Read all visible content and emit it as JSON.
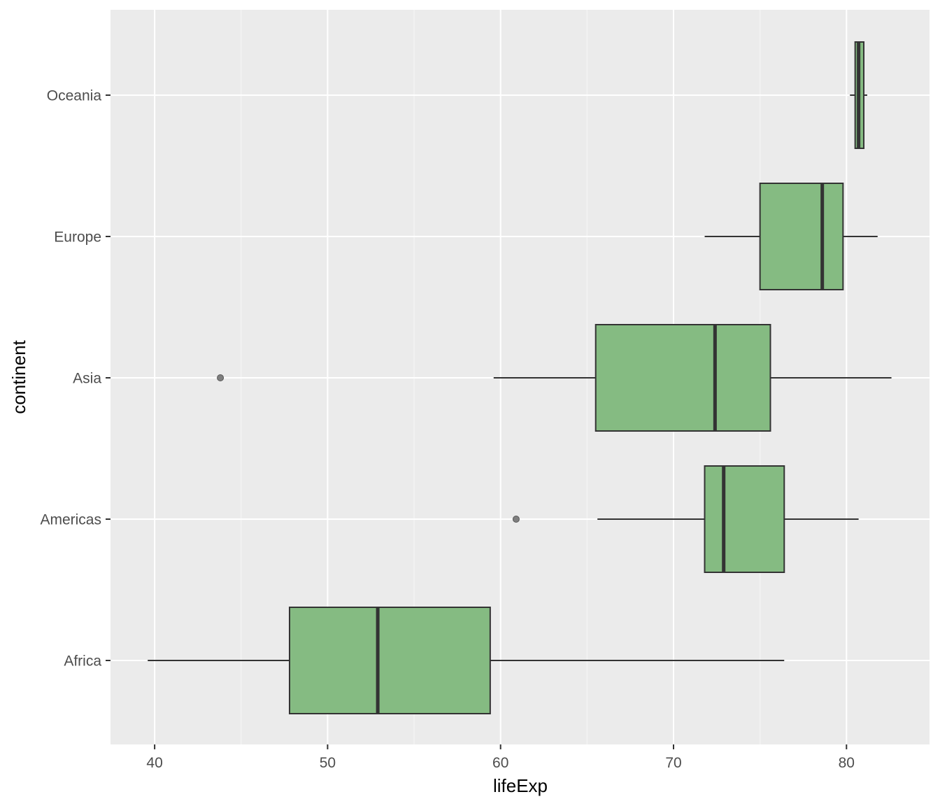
{
  "chart_data": {
    "type": "boxplot",
    "orientation": "horizontal",
    "xlabel": "lifeExp",
    "ylabel": "continent",
    "xlim": [
      37.5,
      84.9
    ],
    "x_ticks": [
      40,
      50,
      60,
      70,
      80
    ],
    "x_tick_labels": [
      "40",
      "50",
      "60",
      "70",
      "80"
    ],
    "categories": [
      "Africa",
      "Americas",
      "Asia",
      "Europe",
      "Oceania"
    ],
    "grid": true,
    "legend": "none",
    "series": [
      {
        "category": "Africa",
        "whisker_low": 39.6,
        "q1": 47.8,
        "median": 52.9,
        "q3": 59.4,
        "whisker_high": 76.4,
        "outliers": []
      },
      {
        "category": "Americas",
        "whisker_low": 65.6,
        "q1": 71.8,
        "median": 72.9,
        "q3": 76.4,
        "whisker_high": 80.7,
        "outliers": [
          60.9
        ]
      },
      {
        "category": "Asia",
        "whisker_low": 59.6,
        "q1": 65.5,
        "median": 72.4,
        "q3": 75.6,
        "whisker_high": 82.6,
        "outliers": [
          43.8
        ]
      },
      {
        "category": "Europe",
        "whisker_low": 71.8,
        "q1": 75.0,
        "median": 78.6,
        "q3": 79.8,
        "whisker_high": 81.8,
        "outliers": []
      },
      {
        "category": "Oceania",
        "whisker_low": 80.2,
        "q1": 80.5,
        "median": 80.7,
        "q3": 81.0,
        "whisker_high": 81.2,
        "outliers": []
      }
    ]
  },
  "colors": {
    "panel_background": "#ebebeb",
    "grid_major": "#ffffff",
    "grid_minor": "#f5f5f5",
    "box_fill": "#85bb82",
    "box_outline": "#333333",
    "outlier_fill": "#7f7f7f"
  }
}
